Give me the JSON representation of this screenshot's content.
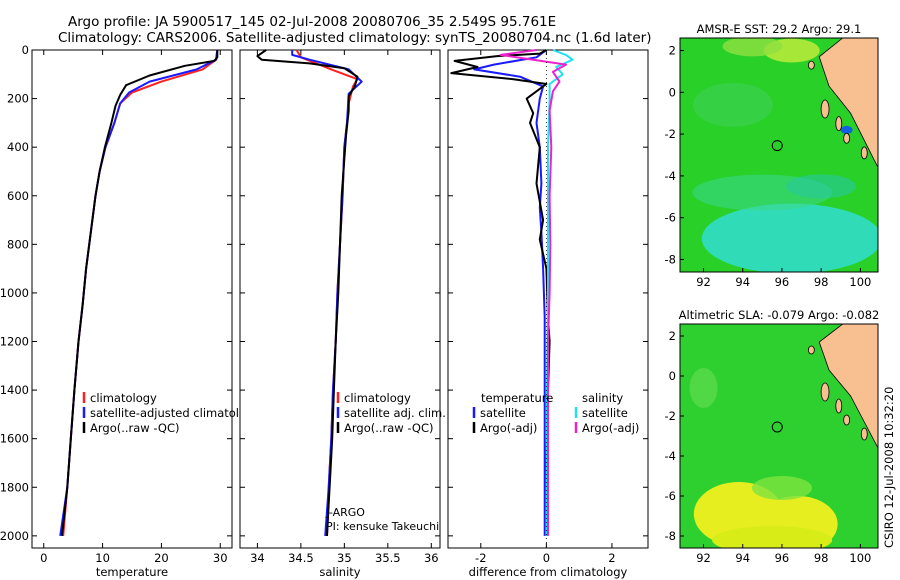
{
  "title_line1": "Argo profile: JA 5900517_145 02-Jul-2008 20080706_35 2.549S 95.761E",
  "title_line2": "Climatology: CARS2006. Satellite-adjusted climatology: synTS_20080704.nc (1.6d later)",
  "side_caption": "CSIRO 12-Jul-2008 10:32:20",
  "colors": {
    "climatology": "#ff2020",
    "satellite": "#1a1aff",
    "argo": "#000000",
    "satellite_salinity": "#22e0f0",
    "argo_salinity": "#ee22cc",
    "land": "#f8c090",
    "sst_main": "#28d028",
    "sst_cool": "#30dcc0",
    "sla_main": "#2ed030",
    "sla_warm": "#e6ee20"
  },
  "chart_data": [
    {
      "type": "line",
      "id": "temperature",
      "xlabel": "temperature",
      "ylabel": "",
      "xlim": [
        -2,
        32
      ],
      "ylim": [
        2050,
        0
      ],
      "xticks": [
        0,
        10,
        20,
        30
      ],
      "yticks": [
        0,
        200,
        400,
        600,
        800,
        1000,
        1200,
        1400,
        1600,
        1800,
        2000
      ],
      "legend": [
        "climatology",
        "satellite-adjusted climatology",
        "Argo(..raw -QC)"
      ],
      "series": [
        {
          "name": "climatology",
          "color_key": "climatology",
          "points": [
            [
              29.5,
              0
            ],
            [
              29.3,
              40
            ],
            [
              27,
              80
            ],
            [
              20,
              130
            ],
            [
              15,
              175
            ],
            [
              13,
              220
            ],
            [
              12,
              300
            ],
            [
              10.5,
              400
            ],
            [
              9.5,
              500
            ],
            [
              8.8,
              600
            ],
            [
              8,
              750
            ],
            [
              7.2,
              900
            ],
            [
              6.6,
              1050
            ],
            [
              5.9,
              1200
            ],
            [
              5.2,
              1400
            ],
            [
              4.6,
              1600
            ],
            [
              4,
              1800
            ],
            [
              3.3,
              2000
            ]
          ]
        },
        {
          "name": "satellite-adjusted climatology",
          "color_key": "satellite",
          "points": [
            [
              29.5,
              0
            ],
            [
              29.3,
              40
            ],
            [
              26,
              80
            ],
            [
              18,
              130
            ],
            [
              14.5,
              175
            ],
            [
              13,
              220
            ],
            [
              12,
              300
            ],
            [
              10.5,
              400
            ],
            [
              9.5,
              500
            ],
            [
              8.8,
              600
            ],
            [
              8,
              750
            ],
            [
              7.2,
              900
            ],
            [
              6.6,
              1050
            ],
            [
              5.9,
              1200
            ],
            [
              5.2,
              1400
            ],
            [
              4.6,
              1600
            ],
            [
              4,
              1800
            ],
            [
              2.8,
              2000
            ]
          ]
        },
        {
          "name": "Argo(..raw -QC)",
          "color_key": "argo",
          "points": [
            [
              29.5,
              0
            ],
            [
              29.5,
              30
            ],
            [
              29,
              45
            ],
            [
              24,
              65
            ],
            [
              18,
              105
            ],
            [
              14,
              145
            ],
            [
              13,
              185
            ],
            [
              12.2,
              230
            ],
            [
              11.5,
              300
            ],
            [
              10.4,
              400
            ],
            [
              9.5,
              500
            ],
            [
              8.8,
              600
            ],
            [
              8,
              750
            ],
            [
              7.2,
              900
            ],
            [
              6.6,
              1050
            ],
            [
              5.9,
              1200
            ],
            [
              5.2,
              1400
            ],
            [
              4.6,
              1600
            ],
            [
              4,
              1800
            ],
            [
              3.1,
              2000
            ]
          ]
        }
      ]
    },
    {
      "type": "line",
      "id": "salinity",
      "xlabel": "salinity",
      "ylabel": "",
      "xlim": [
        33.8,
        36.1
      ],
      "ylim": [
        2050,
        0
      ],
      "xticks": [
        34,
        34.5,
        35,
        35.5,
        36
      ],
      "legend": [
        "climatology",
        "satellite adj. clim.",
        "Argo(..raw -QC)"
      ],
      "annotation": [
        "J-ARGO",
        "PI: kensuke Takeuchi"
      ],
      "series": [
        {
          "name": "climatology",
          "color_key": "climatology",
          "points": [
            [
              34.45,
              0
            ],
            [
              34.5,
              30
            ],
            [
              34.85,
              80
            ],
            [
              35.15,
              120
            ],
            [
              35.1,
              150
            ],
            [
              35.05,
              220
            ],
            [
              35.03,
              300
            ],
            [
              35,
              400
            ],
            [
              34.98,
              600
            ],
            [
              34.95,
              800
            ],
            [
              34.92,
              1000
            ],
            [
              34.9,
              1200
            ],
            [
              34.87,
              1400
            ],
            [
              34.85,
              1600
            ],
            [
              34.82,
              1800
            ],
            [
              34.8,
              2000
            ]
          ]
        },
        {
          "name": "satellite adj. clim.",
          "color_key": "satellite",
          "points": [
            [
              34.4,
              0
            ],
            [
              34.4,
              20
            ],
            [
              34.6,
              40
            ],
            [
              35.05,
              80
            ],
            [
              35.2,
              130
            ],
            [
              35.05,
              180
            ],
            [
              35.03,
              300
            ],
            [
              35,
              400
            ],
            [
              34.98,
              600
            ],
            [
              34.95,
              800
            ],
            [
              34.92,
              1000
            ],
            [
              34.9,
              1200
            ],
            [
              34.87,
              1400
            ],
            [
              34.85,
              1600
            ],
            [
              34.82,
              1800
            ],
            [
              34.78,
              2000
            ]
          ]
        },
        {
          "name": "Argo(..raw -QC)",
          "color_key": "argo",
          "points": [
            [
              34.1,
              0
            ],
            [
              34,
              25
            ],
            [
              34.05,
              40
            ],
            [
              34.6,
              55
            ],
            [
              35,
              75
            ],
            [
              35.15,
              110
            ],
            [
              35.12,
              150
            ],
            [
              35.05,
              190
            ],
            [
              35.05,
              250
            ],
            [
              35.02,
              350
            ],
            [
              35,
              450
            ],
            [
              34.97,
              600
            ],
            [
              34.95,
              800
            ],
            [
              34.93,
              1000
            ],
            [
              34.9,
              1200
            ],
            [
              34.88,
              1400
            ],
            [
              34.86,
              1600
            ],
            [
              34.83,
              1800
            ],
            [
              34.8,
              2000
            ]
          ]
        }
      ]
    },
    {
      "type": "line",
      "id": "difference",
      "xlabel": "difference from climatology",
      "ylabel": "",
      "xlim": [
        -3,
        3.1
      ],
      "ylim": [
        2050,
        0
      ],
      "xticks": [
        -2,
        0,
        2
      ],
      "legend_temperature_title": "temperature",
      "legend_salinity_title": "salinity",
      "legend_temperature": [
        "satellite",
        "Argo(-adj)"
      ],
      "legend_salinity": [
        "satellite",
        "Argo(-adj)"
      ],
      "series": [
        {
          "name": "temperature satellite",
          "color_key": "satellite",
          "points": [
            [
              0,
              0
            ],
            [
              -0.3,
              30
            ],
            [
              -1.6,
              60
            ],
            [
              -2.2,
              80
            ],
            [
              -0.8,
              110
            ],
            [
              -0.1,
              150
            ],
            [
              -0.2,
              200
            ],
            [
              -0.3,
              300
            ],
            [
              -0.2,
              400
            ],
            [
              -0.15,
              550
            ],
            [
              -0.2,
              650
            ],
            [
              -0.15,
              750
            ],
            [
              -0.1,
              900
            ],
            [
              -0.05,
              1100
            ],
            [
              -0.05,
              1400
            ],
            [
              -0.05,
              1700
            ],
            [
              -0.05,
              2000
            ]
          ]
        },
        {
          "name": "temperature Argo(-adj)",
          "color_key": "argo",
          "points": [
            [
              0,
              0
            ],
            [
              -0.2,
              15
            ],
            [
              -1.5,
              25
            ],
            [
              -2.8,
              45
            ],
            [
              -2.1,
              70
            ],
            [
              -2.9,
              95
            ],
            [
              -1,
              120
            ],
            [
              0,
              140
            ],
            [
              -0.3,
              170
            ],
            [
              -0.6,
              200
            ],
            [
              -0.4,
              260
            ],
            [
              -0.5,
              300
            ],
            [
              -0.2,
              400
            ],
            [
              -0.3,
              550
            ],
            [
              -0.1,
              700
            ],
            [
              -0.2,
              780
            ],
            [
              0,
              900
            ],
            [
              0.05,
              1100
            ],
            [
              0.1,
              1200
            ],
            [
              0.05,
              1400
            ],
            [
              0,
              1700
            ],
            [
              0,
              2000
            ]
          ]
        },
        {
          "name": "salinity satellite",
          "color_key": "satellite_salinity",
          "points": [
            [
              0.2,
              0
            ],
            [
              0.6,
              20
            ],
            [
              0.8,
              40
            ],
            [
              0.3,
              70
            ],
            [
              0.5,
              100
            ],
            [
              0.1,
              140
            ],
            [
              0.1,
              200
            ],
            [
              0.05,
              400
            ],
            [
              0.05,
              700
            ],
            [
              0.05,
              1000
            ],
            [
              0.02,
              1400
            ],
            [
              0,
              2000
            ]
          ]
        },
        {
          "name": "salinity Argo(-adj)",
          "color_key": "argo_salinity",
          "points": [
            [
              -0.3,
              0
            ],
            [
              -1.4,
              20
            ],
            [
              -0.4,
              40
            ],
            [
              0.6,
              60
            ],
            [
              0.2,
              90
            ],
            [
              0.4,
              130
            ],
            [
              0.2,
              170
            ],
            [
              0.1,
              250
            ],
            [
              0.15,
              400
            ],
            [
              0.1,
              600
            ],
            [
              0.12,
              800
            ],
            [
              0.1,
              1000
            ],
            [
              0.05,
              1200
            ],
            [
              0.05,
              1400
            ],
            [
              0.05,
              1700
            ],
            [
              0.05,
              2000
            ]
          ]
        }
      ]
    },
    {
      "type": "heatmap",
      "id": "sst_map",
      "title": "AMSR-E SST: 29.2 Argo: 29.1",
      "xlim": [
        90.8,
        100.9
      ],
      "ylim": [
        -8.6,
        2.6
      ],
      "xticks": [
        92,
        94,
        96,
        98,
        100
      ],
      "yticks": [
        -8,
        -6,
        -4,
        -2,
        0,
        2
      ],
      "marker": {
        "lon": 95.761,
        "lat": -2.549
      }
    },
    {
      "type": "heatmap",
      "id": "sla_map",
      "title": "Altimetric SLA: -0.079 Argo: -0.082",
      "xlim": [
        90.8,
        100.9
      ],
      "ylim": [
        -8.6,
        2.6
      ],
      "xticks": [
        92,
        94,
        96,
        98,
        100
      ],
      "yticks": [
        -8,
        -6,
        -4,
        -2,
        0,
        2
      ],
      "marker": {
        "lon": 95.761,
        "lat": -2.549
      }
    }
  ]
}
